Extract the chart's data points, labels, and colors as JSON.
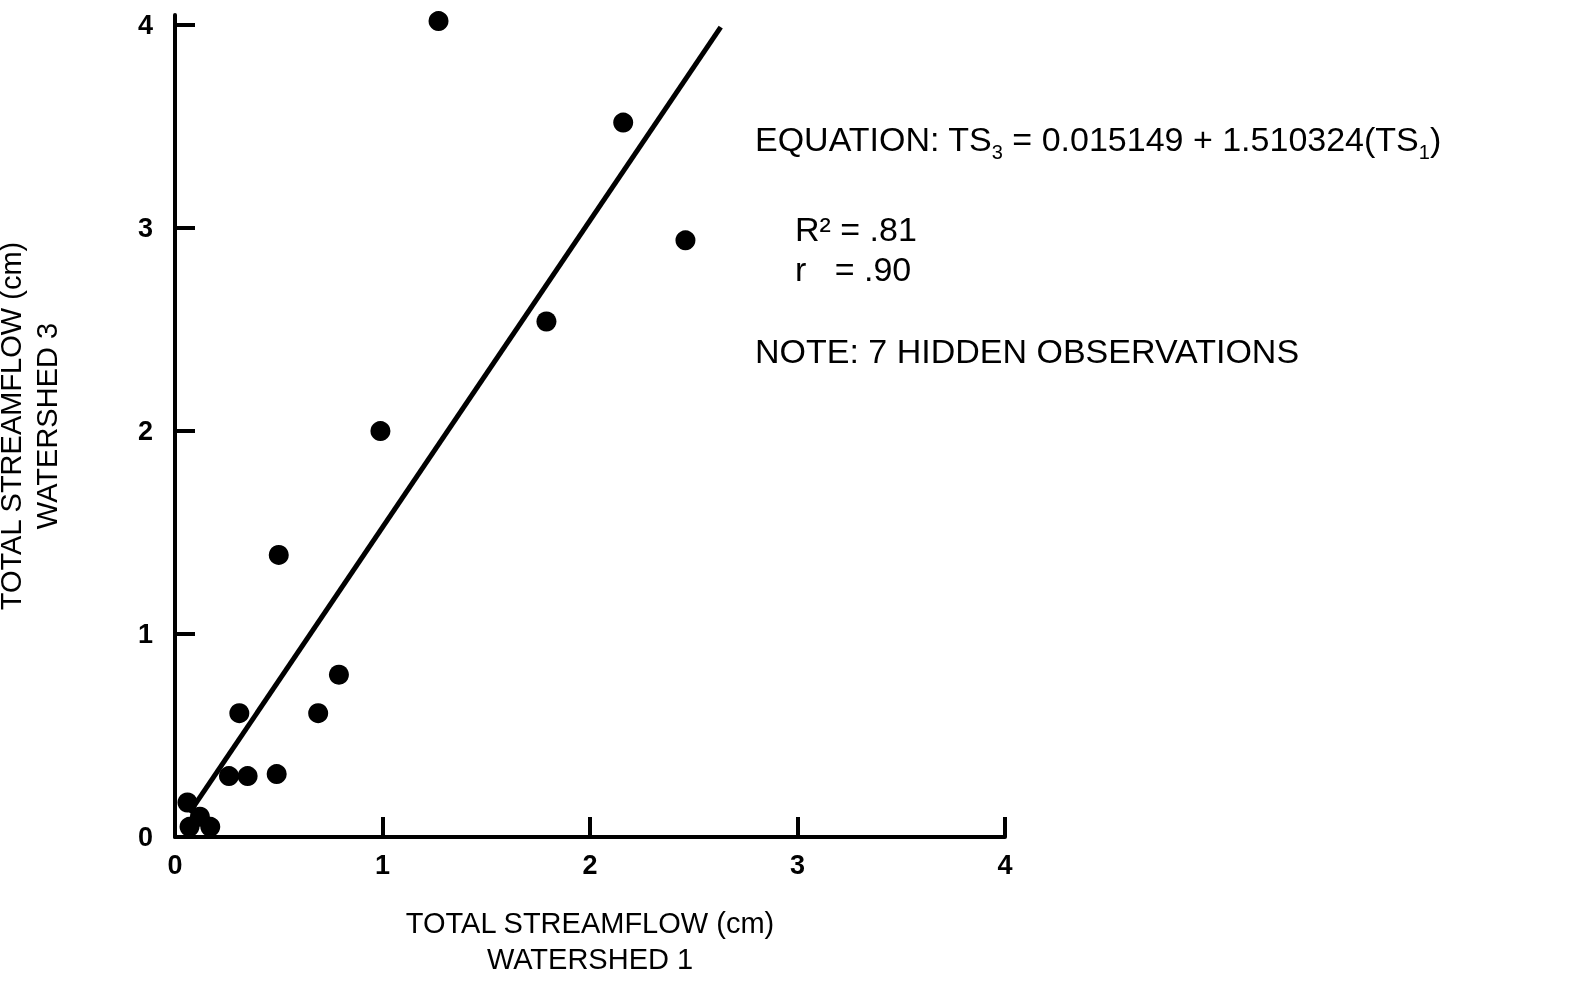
{
  "chart_data": {
    "type": "scatter",
    "xlabel": "TOTAL STREAMFLOW (cm)\nWATERSHED 1",
    "ylabel": "TOTAL STREAMFLOW (cm)\nWATERSHED 3",
    "xlim": [
      0,
      4
    ],
    "xticks": [
      0,
      1,
      2,
      3,
      4
    ],
    "ylim": [
      0,
      4.05
    ],
    "yticks": [
      0,
      1,
      2,
      3,
      4
    ],
    "grid": false,
    "marker": "circle",
    "series": [
      {
        "type": "scatter",
        "color": "#000000",
        "x": [
          1.27,
          2.16,
          2.46,
          1.79,
          0.99,
          0.5,
          0.79,
          0.31,
          0.69,
          0.26,
          0.35,
          0.49,
          0.06,
          0.12,
          0.07,
          0.17
        ],
        "values": [
          4.02,
          3.52,
          2.94,
          2.54,
          2.0,
          1.39,
          0.8,
          0.61,
          0.61,
          0.3,
          0.3,
          0.31,
          0.17,
          0.1,
          0.05,
          0.05
        ]
      },
      {
        "type": "line",
        "color": "#000000",
        "marker": "none",
        "line_style": "solid",
        "x": [
          0.07,
          2.63
        ],
        "values": [
          0.12,
          3.99
        ]
      }
    ],
    "annotations": [
      "EQUATION: TS$_{3}$ = 0.015149 + 1.510324(TS$_{1}$)",
      "R² = .81",
      "r   = .90",
      "NOTE: 7 HIDDEN OBSERVATIONS"
    ]
  }
}
